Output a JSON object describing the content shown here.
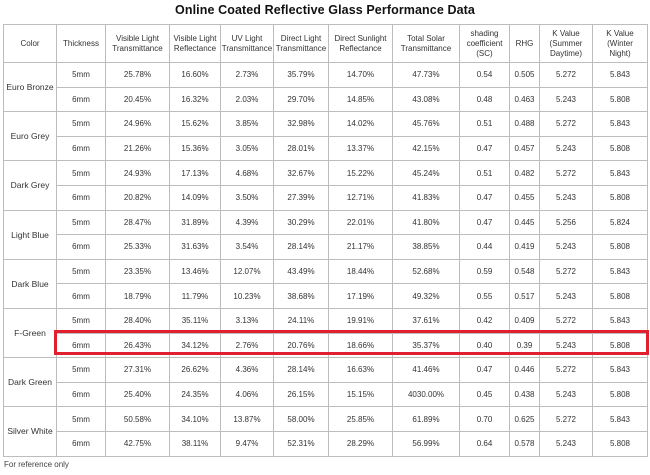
{
  "title": "Online Coated Reflective Glass Performance Data",
  "headers": [
    "Color",
    "Thickness",
    "Visible Light\nTransmittance",
    "Visible Light\nReflectance",
    "UV Light\nTransmittance",
    "Direct Light\nTransmittance",
    "Direct Sunlight\nReflectance",
    "Total Solar\nTransmittance",
    "shading\ncoefficient\n(SC)",
    "RHG",
    "K Value\n(Summer\nDaytime)",
    "K Value\n(Winter\nNight)"
  ],
  "groups": [
    {
      "color": "Euro Bronze",
      "rows": [
        [
          "5mm",
          "25.78%",
          "16.60%",
          "2.73%",
          "35.79%",
          "14.70%",
          "47.73%",
          "0.54",
          "0.505",
          "5.272",
          "5.843"
        ],
        [
          "6mm",
          "20.45%",
          "16.32%",
          "2.03%",
          "29.70%",
          "14.85%",
          "43.08%",
          "0.48",
          "0.463",
          "5.243",
          "5.808"
        ]
      ]
    },
    {
      "color": "Euro Grey",
      "rows": [
        [
          "5mm",
          "24.96%",
          "15.62%",
          "3.85%",
          "32.98%",
          "14.02%",
          "45.76%",
          "0.51",
          "0.488",
          "5.272",
          "5.843"
        ],
        [
          "6mm",
          "21.26%",
          "15.36%",
          "3.05%",
          "28.01%",
          "13.37%",
          "42.15%",
          "0.47",
          "0.457",
          "5.243",
          "5.808"
        ]
      ]
    },
    {
      "color": "Dark Grey",
      "rows": [
        [
          "5mm",
          "24.93%",
          "17.13%",
          "4.68%",
          "32.67%",
          "15.22%",
          "45.24%",
          "0.51",
          "0.482",
          "5.272",
          "5.843"
        ],
        [
          "6mm",
          "20.82%",
          "14.09%",
          "3.50%",
          "27.39%",
          "12.71%",
          "41.83%",
          "0.47",
          "0.455",
          "5.243",
          "5.808"
        ]
      ]
    },
    {
      "color": "Light Blue",
      "rows": [
        [
          "5mm",
          "28.47%",
          "31.89%",
          "4.39%",
          "30.29%",
          "22.01%",
          "41.80%",
          "0.47",
          "0.445",
          "5.256",
          "5.824"
        ],
        [
          "6mm",
          "25.33%",
          "31.63%",
          "3.54%",
          "28.14%",
          "21.17%",
          "38.85%",
          "0.44",
          "0.419",
          "5.243",
          "5.808"
        ]
      ]
    },
    {
      "color": "Dark Blue",
      "rows": [
        [
          "5mm",
          "23.35%",
          "13.46%",
          "12.07%",
          "43.49%",
          "18.44%",
          "52.68%",
          "0.59",
          "0.548",
          "5.272",
          "5.843"
        ],
        [
          "6mm",
          "18.79%",
          "11.79%",
          "10.23%",
          "38.68%",
          "17.19%",
          "49.32%",
          "0.55",
          "0.517",
          "5.243",
          "5.808"
        ]
      ]
    },
    {
      "color": "F-Green",
      "rows": [
        [
          "5mm",
          "28.40%",
          "35.11%",
          "3.13%",
          "24.11%",
          "19.91%",
          "37.61%",
          "0.42",
          "0.409",
          "5.272",
          "5.843"
        ],
        [
          "6mm",
          "26.43%",
          "34.12%",
          "2.76%",
          "20.76%",
          "18.66%",
          "35.37%",
          "0.40",
          "0.39",
          "5.243",
          "5.808"
        ]
      ]
    },
    {
      "color": "Dark Green",
      "rows": [
        [
          "5mm",
          "27.31%",
          "26.62%",
          "4.36%",
          "28.14%",
          "16.63%",
          "41.46%",
          "0.47",
          "0.446",
          "5.272",
          "5.843"
        ],
        [
          "6mm",
          "25.40%",
          "24.35%",
          "4.06%",
          "26.15%",
          "15.15%",
          "4030.00%",
          "0.45",
          "0.438",
          "5.243",
          "5.808"
        ]
      ]
    },
    {
      "color": "Silver White",
      "rows": [
        [
          "5mm",
          "50.58%",
          "34.10%",
          "13.87%",
          "58.00%",
          "25.85%",
          "61.89%",
          "0.70",
          "0.625",
          "5.272",
          "5.843"
        ],
        [
          "6mm",
          "42.75%",
          "38.11%",
          "9.47%",
          "52.31%",
          "28.29%",
          "56.99%",
          "0.64",
          "0.578",
          "5.243",
          "5.808"
        ]
      ]
    }
  ],
  "highlight": {
    "group": "F-Green",
    "row": "6mm",
    "color": "#e0202e"
  },
  "note": "For reference only"
}
